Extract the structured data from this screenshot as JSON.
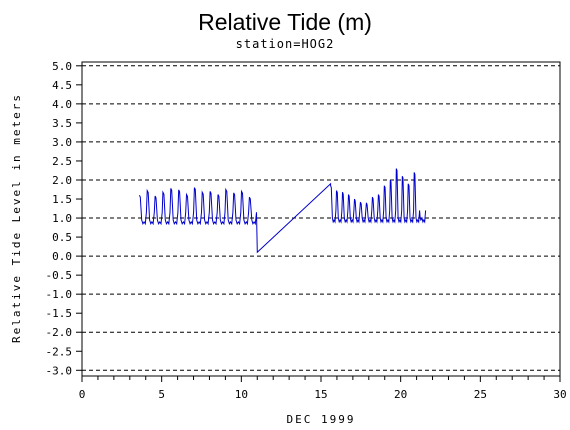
{
  "chart_data": {
    "type": "line",
    "title": "Relative Tide (m)",
    "subtitle": "station=HOG2",
    "xlabel": "DEC 1999",
    "ylabel": "Relative Tide Level in meters",
    "xlim": [
      0,
      30
    ],
    "ylim": [
      -3.0,
      5.0
    ],
    "x_ticks": [
      "0",
      "5",
      "10",
      "15",
      "20",
      "25",
      "30"
    ],
    "y_ticks": [
      "5.0",
      "4.5",
      "4.0",
      "3.5",
      "3.0",
      "2.5",
      "2.0",
      "1.5",
      "1.0",
      "0.5",
      "0.0",
      "-0.5",
      "-1.0",
      "-1.5",
      "-2.0",
      "-2.5",
      "-3.0"
    ],
    "grid": "horizontal dashed lines at integer levels",
    "line_color": "#0000cc",
    "series": [
      {
        "segments": [
          {
            "type": "tidal",
            "x_start": 3.6,
            "x_end": 11.0,
            "low": 0.85,
            "highs": [
              1.6,
              1.72,
              1.58,
              1.68,
              1.78,
              1.74,
              1.62,
              1.8,
              1.68,
              1.7,
              1.62,
              1.75,
              1.66,
              1.7,
              1.55
            ],
            "period": 0.5
          },
          {
            "type": "gap",
            "points": [
              [
                11.0,
                0.1
              ],
              [
                15.6,
                1.9
              ]
            ]
          },
          {
            "type": "tidal",
            "x_start": 15.6,
            "x_end": 21.6,
            "low": 0.9,
            "highs": [
              1.85,
              1.72,
              1.68,
              1.62,
              1.5,
              1.42,
              1.4,
              1.55,
              1.62,
              1.85,
              2.0,
              2.3,
              2.1,
              1.9,
              2.2,
              1.0
            ],
            "period": 0.4
          }
        ]
      }
    ]
  }
}
